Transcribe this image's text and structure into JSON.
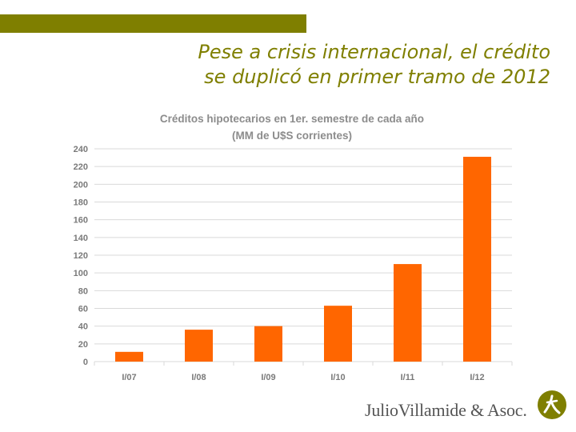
{
  "colors": {
    "accent": "#7f7f00",
    "bar": "#ff6600",
    "grid": "#d9d9d9"
  },
  "headline": {
    "line1": "Pese a crisis internacional, el crédito",
    "line2": "se duplicó en primer tramo de 2012"
  },
  "chart_data": {
    "type": "bar",
    "title": "Créditos hipotecarios en 1er. semestre de cada año",
    "subtitle": "(MM de U$S corrientes)",
    "categories": [
      "I/07",
      "I/08",
      "I/09",
      "I/10",
      "I/11",
      "I/12"
    ],
    "values": [
      11,
      36,
      40,
      63,
      110,
      231
    ],
    "ylim": [
      0,
      240
    ],
    "yticks": [
      0,
      20,
      40,
      60,
      80,
      100,
      120,
      140,
      160,
      180,
      200,
      220,
      240
    ],
    "grid": true,
    "legend": "none"
  },
  "footer": {
    "brand": "JulioVillamide & Asoc.",
    "logo_icon": "villamide-logo-icon"
  }
}
